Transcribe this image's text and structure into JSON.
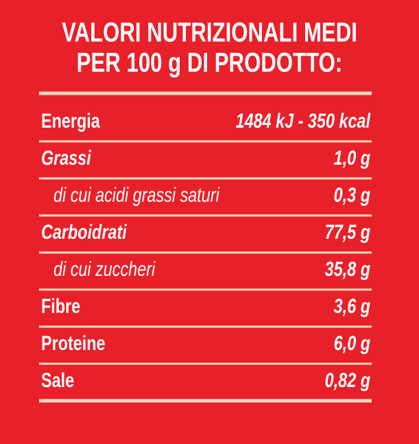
{
  "title": [
    "VALORI NUTRIZIONALI MEDI",
    "PER 100 g DI PRODOTTO:"
  ],
  "table": {
    "rows": [
      [
        "Energia",
        "1484 kJ - 350 kcal"
      ],
      [
        "Grassi",
        "1,0 g"
      ],
      [
        "di cui acidi grassi saturi",
        "0,3 g"
      ],
      [
        "Carboidrati",
        "77,5 g"
      ],
      [
        "di cui zuccheri",
        "35,8 g"
      ],
      [
        "Fibre",
        "3,6 g"
      ],
      [
        "Proteine",
        "6,0 g"
      ],
      [
        "Sale",
        "0,82 g"
      ]
    ]
  }
}
